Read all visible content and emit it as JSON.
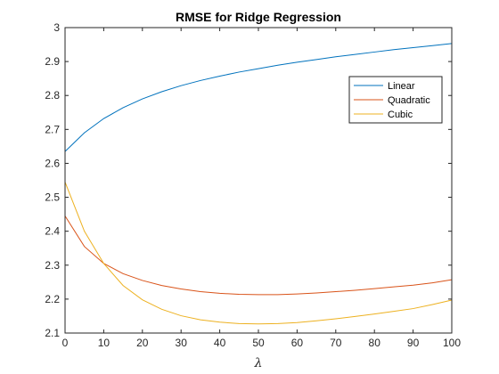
{
  "chart_data": {
    "type": "line",
    "title": "RMSE for Ridge Regression",
    "xlabel": "λ",
    "ylabel": "",
    "xlim": [
      0,
      100
    ],
    "ylim": [
      2.1,
      3.0
    ],
    "xticks": [
      "0",
      "10",
      "20",
      "30",
      "40",
      "50",
      "60",
      "70",
      "80",
      "90",
      "100"
    ],
    "yticks": [
      "2.1",
      "2.2",
      "2.3",
      "2.4",
      "2.5",
      "2.6",
      "2.7",
      "2.8",
      "2.9",
      "3"
    ],
    "grid": false,
    "legend_position": "top-right",
    "x": [
      0,
      5,
      10,
      15,
      20,
      25,
      30,
      35,
      40,
      45,
      50,
      55,
      60,
      65,
      70,
      75,
      80,
      85,
      90,
      95,
      100
    ],
    "series": [
      {
        "name": "Linear",
        "color": "#0072BD",
        "values": [
          2.635,
          2.69,
          2.732,
          2.764,
          2.79,
          2.811,
          2.829,
          2.844,
          2.857,
          2.869,
          2.879,
          2.889,
          2.898,
          2.906,
          2.914,
          2.921,
          2.928,
          2.935,
          2.941,
          2.947,
          2.953
        ]
      },
      {
        "name": "Quadratic",
        "color": "#D95319",
        "values": [
          2.445,
          2.355,
          2.305,
          2.275,
          2.255,
          2.24,
          2.23,
          2.222,
          2.217,
          2.214,
          2.213,
          2.213,
          2.215,
          2.218,
          2.222,
          2.226,
          2.231,
          2.236,
          2.241,
          2.248,
          2.257
        ]
      },
      {
        "name": "Cubic",
        "color": "#EDB120",
        "values": [
          2.545,
          2.4,
          2.305,
          2.24,
          2.198,
          2.17,
          2.151,
          2.139,
          2.132,
          2.128,
          2.127,
          2.128,
          2.131,
          2.136,
          2.142,
          2.149,
          2.156,
          2.164,
          2.172,
          2.184,
          2.197
        ]
      }
    ]
  }
}
